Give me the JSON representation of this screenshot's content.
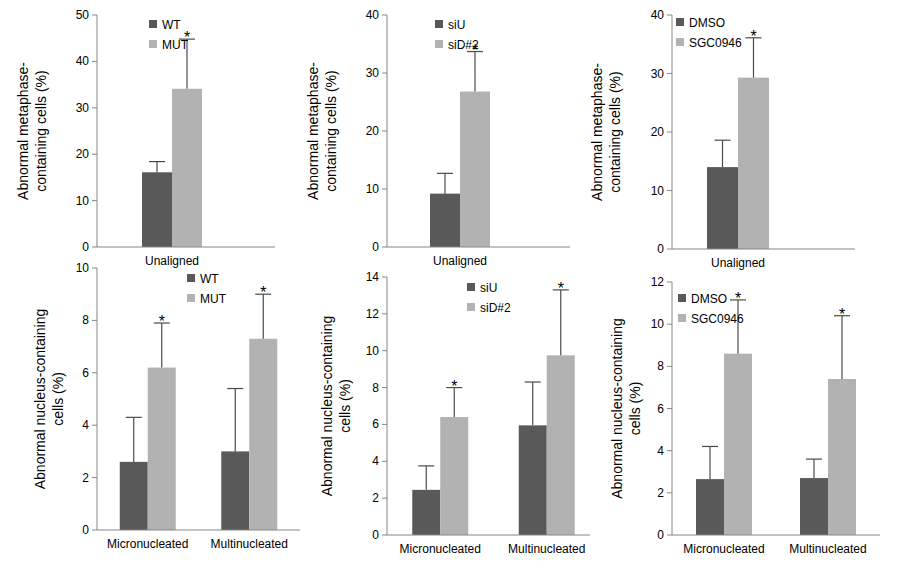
{
  "chart_data": [
    {
      "type": "bar",
      "categories": [
        "Unaligned"
      ],
      "ylabel": "Abnormal metaphase-\ncontaining cells (%)",
      "ylim": [
        0,
        50
      ],
      "yticks": [
        0,
        10,
        20,
        30,
        40,
        50
      ],
      "legend": "top-left",
      "series": [
        {
          "name": "WT",
          "color": "#595959",
          "values": [
            16.1
          ],
          "errors": [
            2.3
          ]
        },
        {
          "name": "MUT",
          "color": "#b2b2b2",
          "values": [
            34.1
          ],
          "errors": [
            10.7
          ],
          "annotations": [
            "*"
          ]
        }
      ]
    },
    {
      "type": "bar",
      "categories": [
        "Unaligned"
      ],
      "ylabel": "Abnormal metaphase-\ncontaining cells (%)",
      "ylim": [
        0,
        40
      ],
      "yticks": [
        0,
        10,
        20,
        30,
        40
      ],
      "legend": "top-left",
      "series": [
        {
          "name": "siU",
          "color": "#595959",
          "values": [
            9.2
          ],
          "errors": [
            3.5
          ]
        },
        {
          "name": "siD#2",
          "color": "#b2b2b2",
          "values": [
            26.8
          ],
          "errors": [
            6.9
          ],
          "annotations": [
            "*"
          ]
        }
      ]
    },
    {
      "type": "bar",
      "categories": [
        "Unaligned"
      ],
      "ylabel": "Abnormal metaphase-\ncontaining cells (%)",
      "ylim": [
        0,
        40
      ],
      "yticks": [
        0,
        10,
        20,
        30,
        40
      ],
      "legend": "top-left",
      "series": [
        {
          "name": "DMSO",
          "color": "#595959",
          "values": [
            14.0
          ],
          "errors": [
            4.6
          ]
        },
        {
          "name": "SGC0946",
          "color": "#b2b2b2",
          "values": [
            29.3
          ],
          "errors": [
            6.8
          ],
          "annotations": [
            "*"
          ]
        }
      ]
    },
    {
      "type": "bar",
      "categories": [
        "Micronucleated",
        "Multinucleated"
      ],
      "ylabel": "Abnormal nucleus-containing\ncells (%)",
      "ylim": [
        0,
        10
      ],
      "yticks": [
        0,
        2,
        4,
        6,
        8,
        10
      ],
      "legend": "top",
      "series": [
        {
          "name": "WT",
          "color": "#595959",
          "values": [
            2.6,
            3.0
          ],
          "errors": [
            1.7,
            2.4
          ]
        },
        {
          "name": "MUT",
          "color": "#b2b2b2",
          "values": [
            6.2,
            7.3
          ],
          "errors": [
            1.7,
            1.7
          ],
          "annotations": [
            "*",
            "*"
          ]
        }
      ]
    },
    {
      "type": "bar",
      "categories": [
        "Micronucleated",
        "Multinucleated"
      ],
      "ylabel": "Abnormal nucleus-containing\ncells (%)",
      "ylim": [
        0,
        14
      ],
      "yticks": [
        0,
        2,
        4,
        6,
        8,
        10,
        12,
        14
      ],
      "legend": "top",
      "series": [
        {
          "name": "siU",
          "color": "#595959",
          "values": [
            2.45,
            5.95
          ],
          "errors": [
            1.3,
            2.35
          ]
        },
        {
          "name": "siD#2",
          "color": "#b2b2b2",
          "values": [
            6.4,
            9.75
          ],
          "errors": [
            1.6,
            3.55
          ],
          "annotations": [
            "*",
            "*"
          ]
        }
      ]
    },
    {
      "type": "bar",
      "categories": [
        "Micronucleated",
        "Multinucleated"
      ],
      "ylabel": "Abnormal nucleus-containing\ncells (%)",
      "ylim": [
        0,
        12
      ],
      "yticks": [
        0,
        2,
        4,
        6,
        8,
        10,
        12
      ],
      "legend": "top-left",
      "series": [
        {
          "name": "DMSO",
          "color": "#595959",
          "values": [
            2.65,
            2.7
          ],
          "errors": [
            1.55,
            0.9
          ]
        },
        {
          "name": "SGC0946",
          "color": "#b2b2b2",
          "values": [
            8.6,
            7.4
          ],
          "errors": [
            2.55,
            3.0
          ],
          "annotations": [
            "*",
            "*"
          ]
        }
      ]
    }
  ]
}
